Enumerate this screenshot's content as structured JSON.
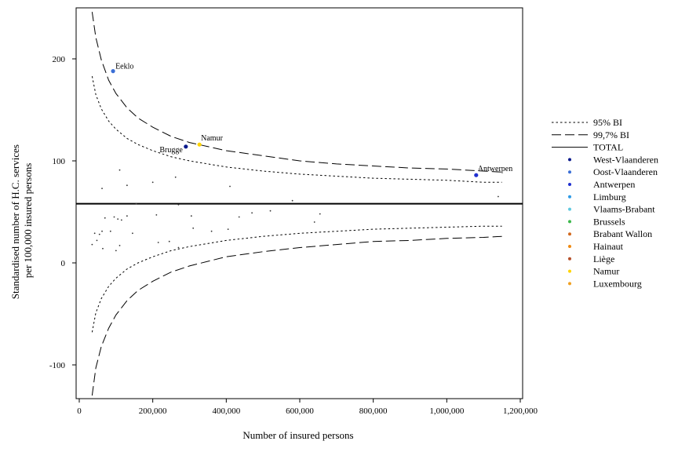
{
  "chart_data": {
    "type": "scatter",
    "xlabel": "Number of insured persons",
    "ylabel_lines": [
      "Standardised number of H.C. services",
      "per 100,000 insured persons"
    ],
    "xlim": [
      0,
      1200000
    ],
    "ylim": [
      -130,
      250
    ],
    "x_ticks": [
      0,
      200000,
      400000,
      600000,
      800000,
      1000000,
      1200000
    ],
    "x_tick_labels": [
      "0",
      "200,000",
      "400,000",
      "600,000",
      "800,000",
      "1,000,000",
      "1,200,000"
    ],
    "y_ticks": [
      -100,
      0,
      100,
      200
    ],
    "y_tick_labels": [
      "-100",
      "0",
      "100",
      "200"
    ],
    "grid": false,
    "legend_position": "right",
    "total_mean": 58,
    "legend": [
      {
        "key": "ci95",
        "label": "95% BI",
        "style": "dotted"
      },
      {
        "key": "ci997",
        "label": "99,7% BI",
        "style": "dashed"
      },
      {
        "key": "total",
        "label": "TOTAL",
        "style": "solid"
      },
      {
        "key": "west_vlaanderen",
        "label": "West-Vlaanderen",
        "color": "#0a1a8c"
      },
      {
        "key": "oost_vlaanderen",
        "label": "Oost-Vlaanderen",
        "color": "#3b6fd6"
      },
      {
        "key": "antwerpen",
        "label": "Antwerpen",
        "color": "#1f2fd0"
      },
      {
        "key": "limburg",
        "label": "Limburg",
        "color": "#2e9ae6"
      },
      {
        "key": "vlaams_brabant",
        "label": "Vlaams-Brabant",
        "color": "#5fc9e0"
      },
      {
        "key": "brussels",
        "label": "Brussels",
        "color": "#3cb84a"
      },
      {
        "key": "brabant_wallon",
        "label": "Brabant Wallon",
        "color": "#d2691e"
      },
      {
        "key": "hainaut",
        "label": "Hainaut",
        "color": "#f08a12"
      },
      {
        "key": "liege",
        "label": "Liège",
        "color": "#b5502a"
      },
      {
        "key": "namur",
        "label": "Namur",
        "color": "#ffd400"
      },
      {
        "key": "luxembourg",
        "label": "Luxembourg",
        "color": "#f0a020"
      }
    ],
    "ci95_upper": [
      [
        35000,
        183
      ],
      [
        45000,
        165
      ],
      [
        60000,
        151
      ],
      [
        80000,
        139
      ],
      [
        100000,
        131
      ],
      [
        130000,
        122
      ],
      [
        160000,
        116
      ],
      [
        200000,
        110
      ],
      [
        250000,
        104
      ],
      [
        300000,
        100
      ],
      [
        400000,
        94
      ],
      [
        500000,
        90
      ],
      [
        600000,
        87
      ],
      [
        700000,
        85
      ],
      [
        800000,
        83
      ],
      [
        900000,
        82
      ],
      [
        1000000,
        81
      ],
      [
        1100000,
        79
      ],
      [
        1150000,
        79
      ]
    ],
    "ci95_lower": [
      [
        35000,
        -68
      ],
      [
        45000,
        -49
      ],
      [
        60000,
        -35
      ],
      [
        80000,
        -23
      ],
      [
        100000,
        -15
      ],
      [
        130000,
        -6
      ],
      [
        160000,
        0
      ],
      [
        200000,
        6
      ],
      [
        250000,
        12
      ],
      [
        300000,
        16
      ],
      [
        400000,
        22
      ],
      [
        500000,
        26
      ],
      [
        600000,
        29
      ],
      [
        700000,
        31
      ],
      [
        800000,
        33
      ],
      [
        900000,
        34
      ],
      [
        1000000,
        35
      ],
      [
        1100000,
        36
      ],
      [
        1150000,
        36
      ]
    ],
    "ci997_upper": [
      [
        35000,
        246
      ],
      [
        45000,
        221
      ],
      [
        60000,
        199
      ],
      [
        80000,
        179
      ],
      [
        100000,
        166
      ],
      [
        130000,
        152
      ],
      [
        160000,
        142
      ],
      [
        200000,
        133
      ],
      [
        250000,
        124
      ],
      [
        300000,
        118
      ],
      [
        400000,
        110
      ],
      [
        500000,
        105
      ],
      [
        600000,
        100
      ],
      [
        700000,
        97
      ],
      [
        800000,
        95
      ],
      [
        900000,
        93
      ],
      [
        1000000,
        92
      ],
      [
        1100000,
        90
      ],
      [
        1150000,
        89
      ]
    ],
    "ci997_lower": [
      [
        35000,
        -130
      ],
      [
        45000,
        -103
      ],
      [
        60000,
        -82
      ],
      [
        80000,
        -64
      ],
      [
        100000,
        -51
      ],
      [
        130000,
        -37
      ],
      [
        160000,
        -27
      ],
      [
        200000,
        -18
      ],
      [
        250000,
        -9
      ],
      [
        300000,
        -3
      ],
      [
        400000,
        6
      ],
      [
        500000,
        11
      ],
      [
        600000,
        15
      ],
      [
        700000,
        18
      ],
      [
        800000,
        21
      ],
      [
        900000,
        22
      ],
      [
        1000000,
        24
      ],
      [
        1100000,
        25
      ],
      [
        1150000,
        26
      ]
    ],
    "points_minor": [
      [
        62000,
        73
      ],
      [
        110000,
        91
      ],
      [
        130000,
        76
      ],
      [
        155000,
        58
      ],
      [
        200000,
        79
      ],
      [
        262000,
        84
      ],
      [
        270000,
        57
      ],
      [
        410000,
        75
      ],
      [
        580000,
        61
      ],
      [
        1140000,
        65
      ],
      [
        35000,
        18
      ],
      [
        42000,
        29
      ],
      [
        48000,
        22
      ],
      [
        55000,
        28
      ],
      [
        62000,
        31
      ],
      [
        64000,
        14
      ],
      [
        70000,
        44
      ],
      [
        85000,
        31
      ],
      [
        95000,
        45
      ],
      [
        100000,
        12
      ],
      [
        105000,
        43
      ],
      [
        110000,
        17
      ],
      [
        115000,
        42
      ],
      [
        130000,
        46
      ],
      [
        145000,
        29
      ],
      [
        210000,
        47
      ],
      [
        215000,
        20
      ],
      [
        245000,
        21
      ],
      [
        270000,
        15
      ],
      [
        305000,
        46
      ],
      [
        310000,
        34
      ],
      [
        360000,
        31
      ],
      [
        405000,
        33
      ],
      [
        435000,
        45
      ],
      [
        470000,
        49
      ],
      [
        520000,
        51
      ],
      [
        640000,
        40
      ],
      [
        655000,
        48
      ]
    ],
    "labeled_points": [
      {
        "name": "Eeklo",
        "x": 92000,
        "y": 188,
        "region": "oost_vlaanderen",
        "label_pos": "right"
      },
      {
        "name": "Brugge",
        "x": 290000,
        "y": 114,
        "region": "west_vlaanderen",
        "label_pos": "left"
      },
      {
        "name": "Namur",
        "x": 327000,
        "y": 116,
        "region": "namur",
        "label_pos": "above-right"
      },
      {
        "name": "Antwerpen",
        "x": 1080000,
        "y": 86,
        "region": "antwerpen",
        "label_pos": "above-right"
      }
    ]
  }
}
